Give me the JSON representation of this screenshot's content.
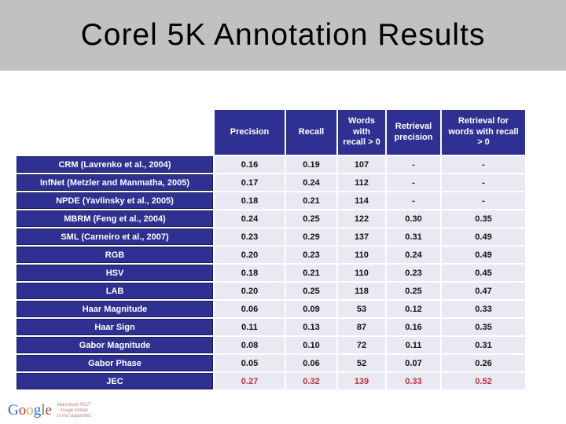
{
  "slide": {
    "title": "Corel 5K Annotation Results"
  },
  "colors": {
    "title_band_bg": "#c1c1c1",
    "table_header_bg": "#2e3191",
    "data_cell_bg": "#e9e9f3",
    "highlight_text": "#c2303c"
  },
  "table": {
    "headers": [
      "Precision",
      "Recall",
      "Words with recall > 0",
      "Retrieval precision",
      "Retrieval for words with recall > 0"
    ],
    "rows": [
      {
        "label": "CRM (Lavrenko et al., 2004)",
        "values": [
          "0.16",
          "0.19",
          "107",
          "-",
          "-"
        ]
      },
      {
        "label": "InfNet (Metzler and Manmatha, 2005)",
        "values": [
          "0.17",
          "0.24",
          "112",
          "-",
          "-"
        ]
      },
      {
        "label": "NPDE (Yavlinsky et al., 2005)",
        "values": [
          "0.18",
          "0.21",
          "114",
          "-",
          "-"
        ]
      },
      {
        "label": "MBRM (Feng et al., 2004)",
        "values": [
          "0.24",
          "0.25",
          "122",
          "0.30",
          "0.35"
        ]
      },
      {
        "label": "SML (Carneiro et al., 2007)",
        "values": [
          "0.23",
          "0.29",
          "137",
          "0.31",
          "0.49"
        ]
      },
      {
        "label": "RGB",
        "values": [
          "0.20",
          "0.23",
          "110",
          "0.24",
          "0.49"
        ]
      },
      {
        "label": "HSV",
        "values": [
          "0.18",
          "0.21",
          "110",
          "0.23",
          "0.45"
        ]
      },
      {
        "label": "LAB",
        "values": [
          "0.20",
          "0.25",
          "118",
          "0.25",
          "0.47"
        ]
      },
      {
        "label": "Haar Magnitude",
        "values": [
          "0.06",
          "0.09",
          "53",
          "0.12",
          "0.33"
        ]
      },
      {
        "label": "Haar Sign",
        "values": [
          "0.11",
          "0.13",
          "87",
          "0.16",
          "0.35"
        ]
      },
      {
        "label": "Gabor Magnitude",
        "values": [
          "0.08",
          "0.10",
          "72",
          "0.11",
          "0.31"
        ]
      },
      {
        "label": "Gabor Phase",
        "values": [
          "0.05",
          "0.06",
          "52",
          "0.07",
          "0.26"
        ]
      },
      {
        "label": "JEC",
        "values": [
          "0.27",
          "0.32",
          "139",
          "0.33",
          "0.52"
        ],
        "highlight": true
      }
    ]
  },
  "footer": {
    "logo_letters": [
      {
        "ch": "G",
        "color": "#2a66d9"
      },
      {
        "ch": "o",
        "color": "#d5352b"
      },
      {
        "ch": "o",
        "color": "#e8a33d"
      },
      {
        "ch": "g",
        "color": "#2a66d9"
      },
      {
        "ch": "l",
        "color": "#3d9e44"
      },
      {
        "ch": "e",
        "color": "#d5352b"
      }
    ],
    "pict_notice_lines": [
      "Macintosh PICT",
      "image format",
      "is not supported"
    ]
  }
}
